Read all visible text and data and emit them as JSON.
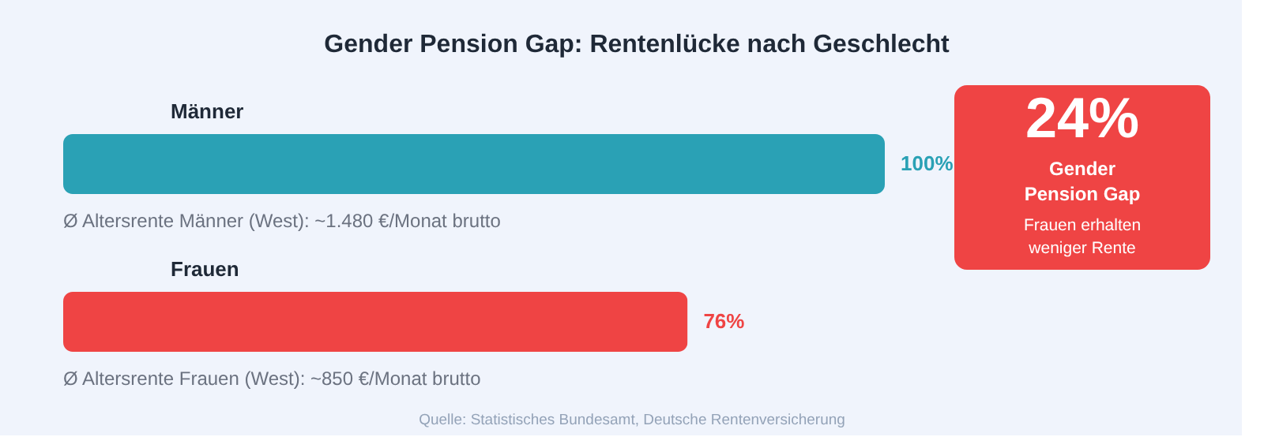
{
  "chart_data": [
    {
      "type": "bar",
      "orientation": "horizontal",
      "title": "Gender Pension Gap: Rentenlücke nach Geschlecht",
      "categories": [
        "Männer",
        "Frauen"
      ],
      "values": [
        100,
        76
      ],
      "colors": [
        "#2aa1b5",
        "#ef4444"
      ],
      "value_labels": [
        "100%",
        "76%"
      ],
      "xlim": [
        0,
        100
      ],
      "tick_labels": false,
      "annotations": [
        "Ø Altersrente Männer (West): ~1.480 €/Monat brutto",
        "Ø Altersrente Frauen (West): ~850 €/Monat brutto",
        "Quelle: Statistisches Bundesamt, Deutsche Rentenversicherung"
      ]
    },
    {
      "type": "other",
      "color": "#ef4444",
      "annotations": [
        "24%",
        "Gender\nPension Gap",
        "Frauen erhalten\nweniger Rente"
      ]
    }
  ]
}
